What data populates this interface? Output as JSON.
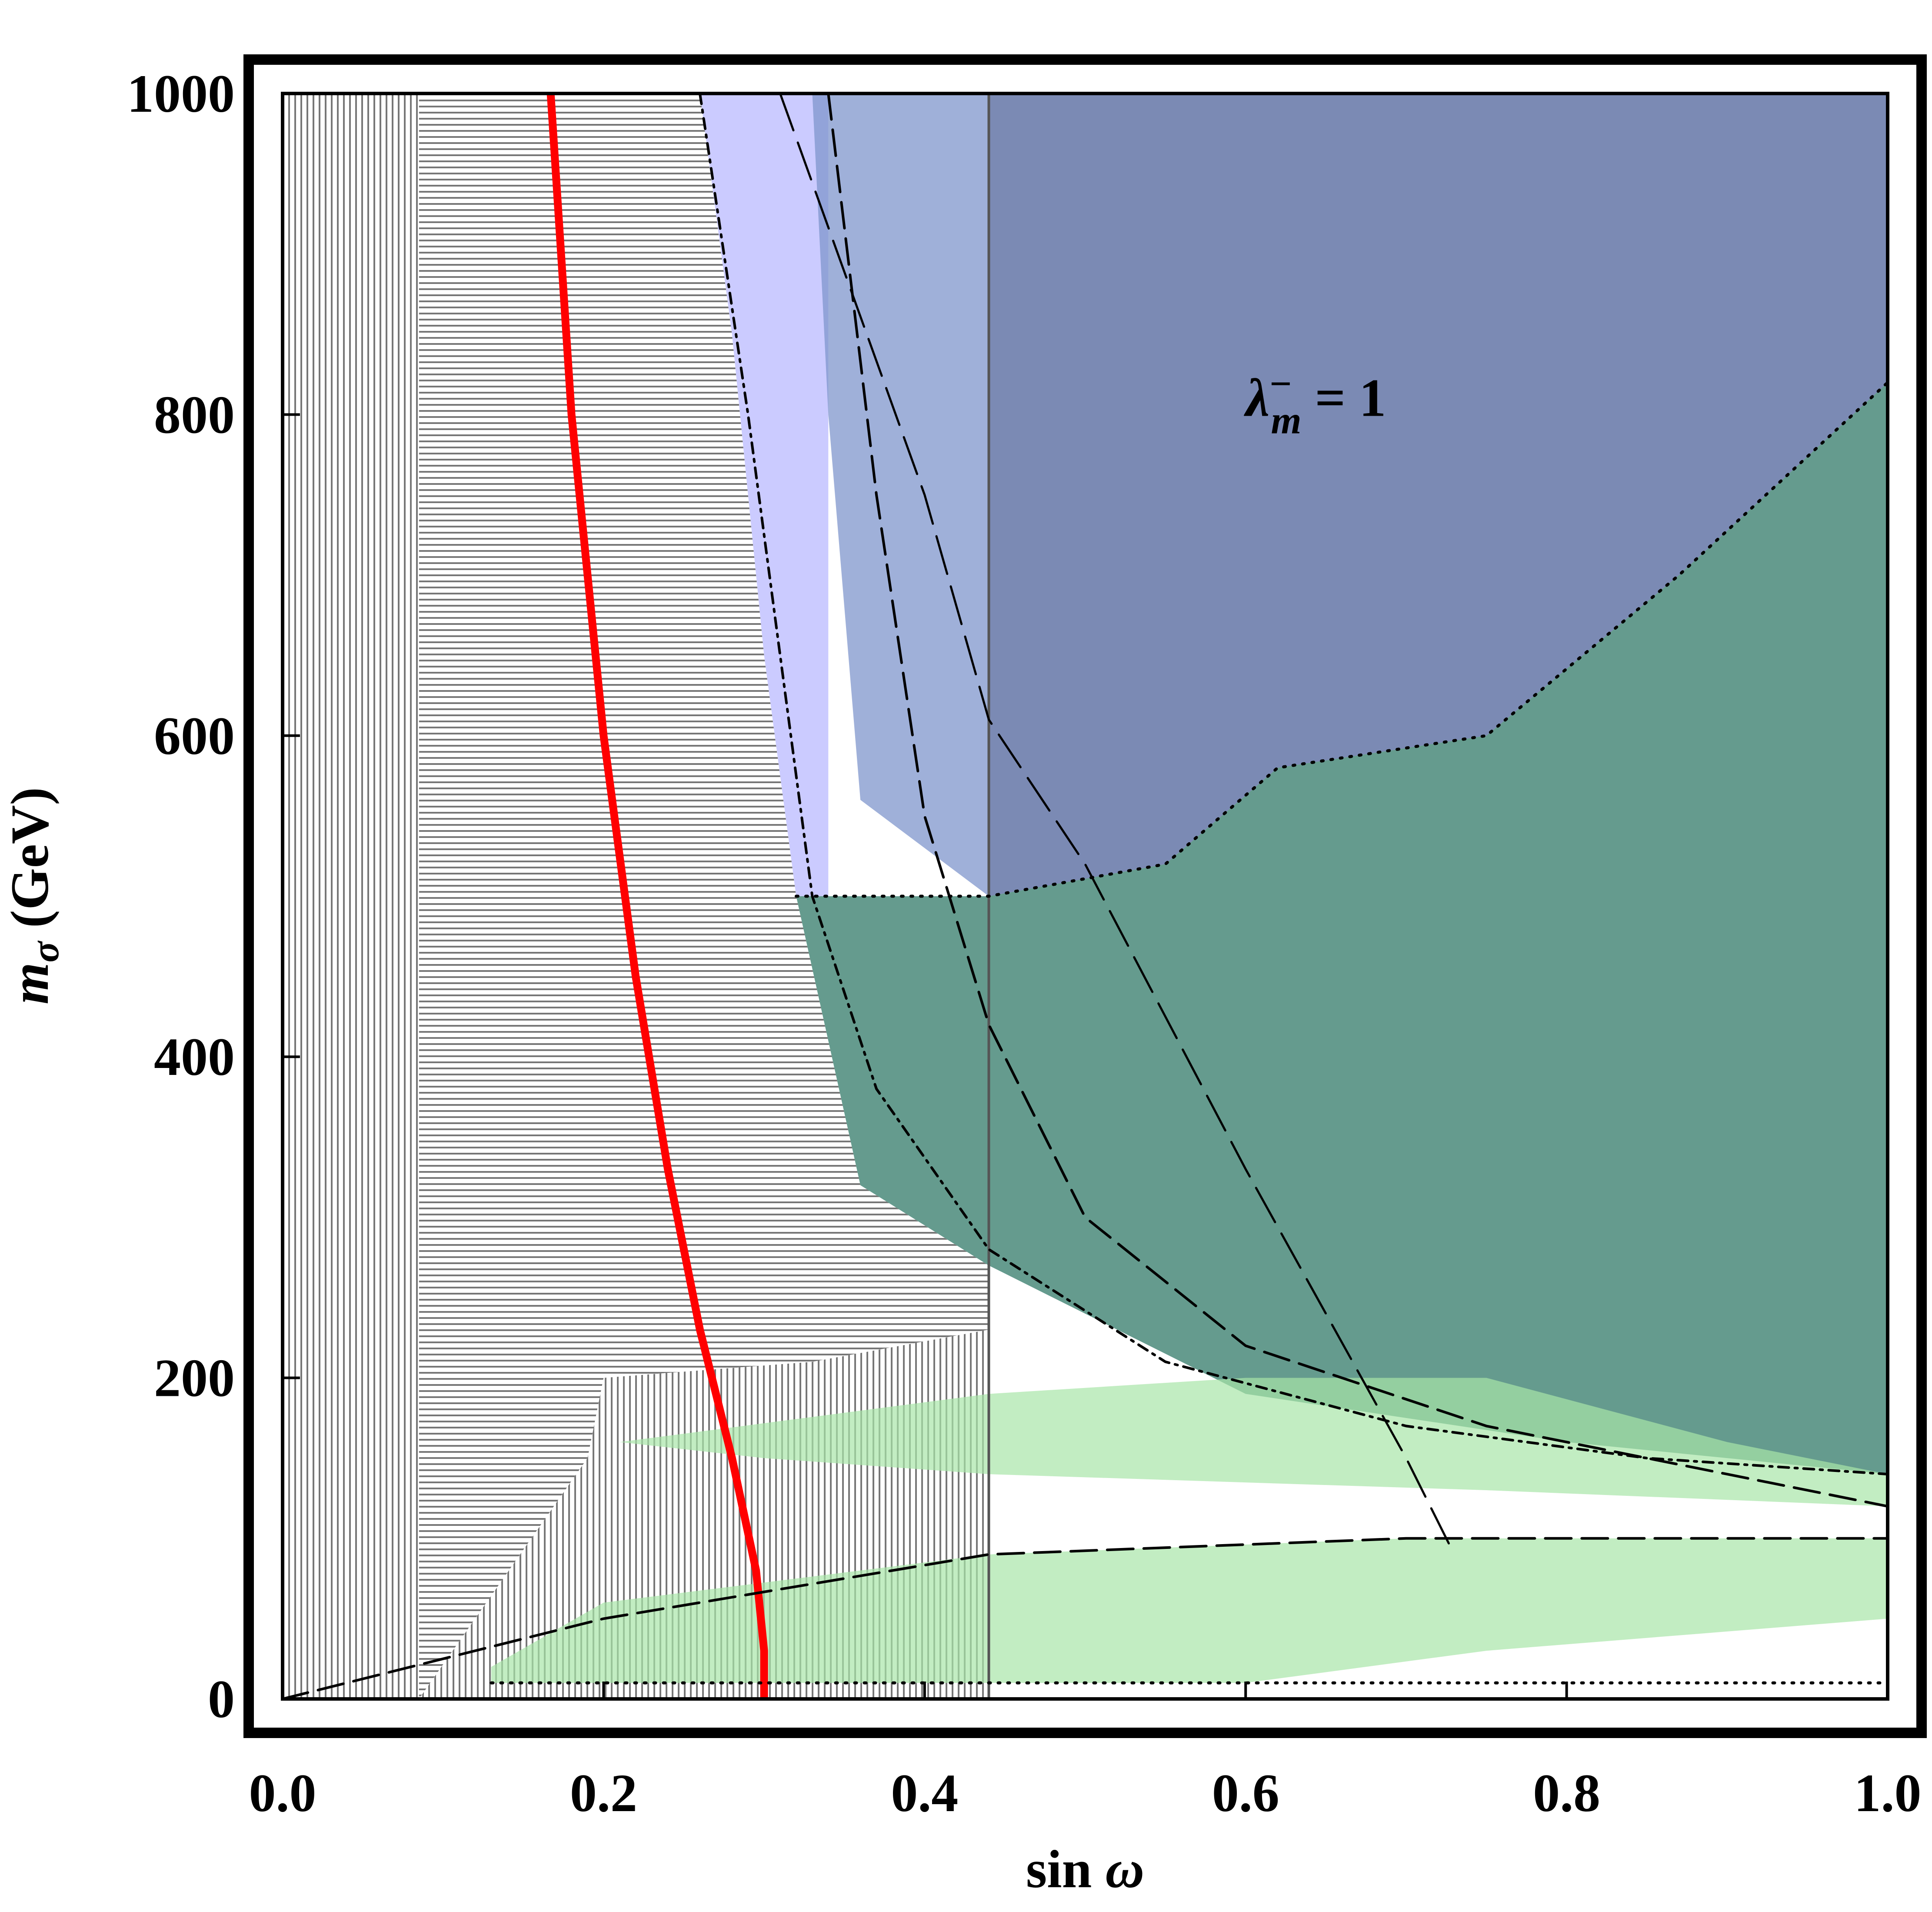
{
  "chart_data": {
    "type": "area",
    "xlabel_main": "sin",
    "xlabel_sym": "ω",
    "ylabel_var": "m",
    "ylabel_sub": "σ",
    "ylabel_unit": "(GeV)",
    "xlim": [
      0,
      1
    ],
    "ylim": [
      0,
      1000
    ],
    "x_ticks": [
      "0.0",
      "0.2",
      "0.4",
      "0.6",
      "0.8",
      "1.0"
    ],
    "y_ticks": [
      "0",
      "200",
      "400",
      "600",
      "800",
      "1000"
    ],
    "annotation": {
      "sym": "λ",
      "sup": "−",
      "sub": "m",
      "rest": " = 1",
      "x": 0.6,
      "y": 810
    },
    "vertical_line_x": 0.44,
    "colors": {
      "curve": "#ff0000",
      "hatch": "#777777",
      "green": "#a8e6a8",
      "teal": "#4a8a7a",
      "lavender": "#c8c8ff",
      "blue": "#7f95cc",
      "navy": "#5c6c96"
    },
    "regions": [
      {
        "name": "lavender",
        "points": [
          [
            0.26,
            1000
          ],
          [
            0.34,
            1000
          ],
          [
            0.34,
            500
          ],
          [
            0.32,
            500
          ],
          [
            0.3,
            650
          ],
          [
            0.28,
            850
          ]
        ]
      },
      {
        "name": "blue",
        "points": [
          [
            0.33,
            1000
          ],
          [
            1,
            1000
          ],
          [
            1,
            820
          ],
          [
            0.87,
            700
          ],
          [
            0.75,
            600
          ],
          [
            0.62,
            580
          ],
          [
            0.55,
            520
          ],
          [
            0.44,
            500
          ],
          [
            0.36,
            560
          ],
          [
            0.34,
            800
          ]
        ]
      },
      {
        "name": "teal",
        "points": [
          [
            0.32,
            500
          ],
          [
            0.44,
            500
          ],
          [
            0.55,
            520
          ],
          [
            0.62,
            580
          ],
          [
            0.75,
            600
          ],
          [
            0.87,
            700
          ],
          [
            1,
            820
          ],
          [
            1,
            140
          ],
          [
            0.8,
            160
          ],
          [
            0.6,
            190
          ],
          [
            0.44,
            270
          ],
          [
            0.36,
            320
          ]
        ]
      },
      {
        "name": "green-band",
        "points": [
          [
            0.13,
            20
          ],
          [
            0.2,
            60
          ],
          [
            0.44,
            90
          ],
          [
            0.7,
            100
          ],
          [
            1,
            100
          ],
          [
            1,
            50
          ],
          [
            0.75,
            30
          ],
          [
            0.6,
            10
          ],
          [
            0.44,
            10
          ],
          [
            0.13,
            10
          ]
        ]
      },
      {
        "name": "green-mid",
        "points": [
          [
            0.21,
            160
          ],
          [
            0.44,
            190
          ],
          [
            0.6,
            200
          ],
          [
            0.75,
            200
          ],
          [
            0.9,
            160
          ],
          [
            1,
            140
          ],
          [
            1,
            120
          ],
          [
            0.75,
            130
          ],
          [
            0.44,
            140
          ],
          [
            0.3,
            150
          ]
        ]
      }
    ],
    "series": [
      {
        "name": "red",
        "style": "solid",
        "x": [
          0.167,
          0.18,
          0.2,
          0.22,
          0.24,
          0.26,
          0.28,
          0.295,
          0.3,
          0.3
        ],
        "y": [
          1000,
          800,
          600,
          450,
          330,
          230,
          150,
          80,
          30,
          0
        ]
      },
      {
        "name": "dashdot",
        "style": "dashdot",
        "x": [
          0.26,
          0.29,
          0.31,
          0.33,
          0.37,
          0.44,
          0.55,
          0.7,
          0.85,
          1.0
        ],
        "y": [
          1000,
          800,
          650,
          500,
          380,
          280,
          210,
          170,
          150,
          140
        ]
      },
      {
        "name": "longdash1",
        "style": "longdash",
        "x": [
          0.34,
          0.37,
          0.4,
          0.44,
          0.5,
          0.6,
          0.75,
          0.9,
          1.0
        ],
        "y": [
          1000,
          750,
          550,
          420,
          300,
          220,
          170,
          140,
          120
        ]
      },
      {
        "name": "longdash2",
        "style": "longdash-thin",
        "x": [
          0.31,
          0.4,
          0.44,
          0.5,
          0.6,
          0.7,
          0.73
        ],
        "y": [
          1000,
          750,
          610,
          520,
          330,
          150,
          90
        ]
      },
      {
        "name": "bottom-dash",
        "style": "longdash",
        "x": [
          0.0,
          0.2,
          0.44,
          0.7,
          1.0
        ],
        "y": [
          0,
          50,
          90,
          100,
          100
        ]
      },
      {
        "name": "dotted-top",
        "style": "dotted",
        "x": [
          0.32,
          0.44,
          0.55,
          0.62,
          0.75,
          0.87,
          1.0
        ],
        "y": [
          500,
          500,
          520,
          580,
          600,
          700,
          820
        ]
      },
      {
        "name": "dotted-low",
        "style": "dotted",
        "x": [
          0.13,
          0.44,
          1.0
        ],
        "y": [
          10,
          10,
          10
        ]
      }
    ]
  }
}
